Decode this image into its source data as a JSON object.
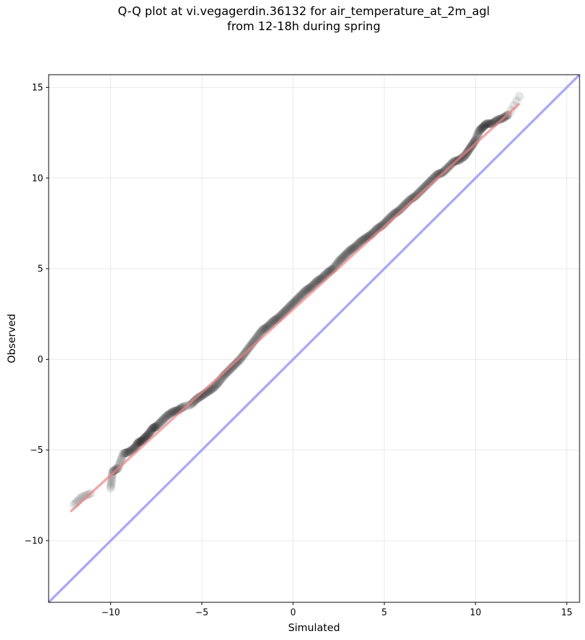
{
  "title": {
    "line1": "Q-Q plot at vi.vegagerdin.36132 for air_temperature_at_2m_agl",
    "line2": "from 12-18h during spring"
  },
  "chart_data": {
    "type": "scatter",
    "title": "Q-Q plot at vi.vegagerdin.36132 for air_temperature_at_2m_agl from 12-18h during spring",
    "xlabel": "Simulated",
    "ylabel": "Observed",
    "xlim": [
      -13.4,
      15.7
    ],
    "ylim": [
      -13.4,
      15.7
    ],
    "xticks": [
      -10,
      -5,
      0,
      5,
      10,
      15
    ],
    "xtick_labels": [
      "−10",
      "−5",
      "0",
      "5",
      "10",
      "15"
    ],
    "yticks": [
      -10,
      -5,
      0,
      5,
      10,
      15
    ],
    "ytick_labels": [
      "−10",
      "−5",
      "0",
      "5",
      "10",
      "15"
    ],
    "grid": true,
    "series": [
      {
        "kind": "quantile-points",
        "color": "#000000",
        "opacity": 0.1,
        "x": [
          -12.0,
          -11.6,
          -11.1,
          -10.0,
          -9.9,
          -9.6,
          -9.3,
          -9.0,
          -8.7,
          -8.5,
          -8.3,
          -8.1,
          -7.9,
          -7.7,
          -7.5,
          -7.2,
          -6.9,
          -6.6,
          -6.3,
          -6.0,
          -5.6,
          -5.3,
          -5.0,
          -4.7,
          -4.4,
          -4.1,
          -3.8,
          -3.5,
          -3.2,
          -2.9,
          -2.6,
          -2.3,
          -2.0,
          -1.7,
          -1.4,
          -1.1,
          -0.8,
          -0.5,
          -0.2,
          0.1,
          0.4,
          0.7,
          1.0,
          1.3,
          1.6,
          1.9,
          2.2,
          2.5,
          2.8,
          3.1,
          3.4,
          3.7,
          4.0,
          4.3,
          4.6,
          4.9,
          5.2,
          5.5,
          5.8,
          6.1,
          6.4,
          6.7,
          7.0,
          7.3,
          7.6,
          7.9,
          8.2,
          8.5,
          8.8,
          9.1,
          9.4,
          9.6,
          9.8,
          10.0,
          10.2,
          10.4,
          10.6,
          10.9,
          11.2,
          11.5,
          11.8,
          12.4
        ],
        "y": [
          -8.0,
          -7.6,
          -7.4,
          -7.1,
          -6.2,
          -6.0,
          -5.2,
          -5.1,
          -4.9,
          -4.6,
          -4.5,
          -4.3,
          -4.1,
          -3.8,
          -3.7,
          -3.4,
          -3.1,
          -2.9,
          -2.8,
          -2.6,
          -2.5,
          -2.2,
          -2.0,
          -1.8,
          -1.6,
          -1.3,
          -0.9,
          -0.6,
          -0.3,
          0.0,
          0.4,
          0.8,
          1.2,
          1.6,
          1.8,
          2.1,
          2.3,
          2.6,
          2.9,
          3.2,
          3.5,
          3.8,
          4.0,
          4.3,
          4.5,
          4.8,
          5.0,
          5.4,
          5.7,
          6.0,
          6.2,
          6.5,
          6.7,
          6.9,
          7.2,
          7.4,
          7.7,
          8.0,
          8.2,
          8.5,
          8.8,
          9.0,
          9.3,
          9.6,
          9.9,
          10.2,
          10.3,
          10.6,
          10.9,
          11.0,
          11.2,
          11.5,
          11.8,
          12.1,
          12.6,
          12.8,
          13.0,
          13.0,
          13.2,
          13.3,
          13.5,
          14.5
        ]
      },
      {
        "kind": "fit-line",
        "color": "#f08080",
        "x": [
          -12.2,
          12.4
        ],
        "y": [
          -8.4,
          14.1
        ]
      },
      {
        "kind": "identity-line",
        "color": "#9999ff",
        "x": [
          -13.4,
          15.7
        ],
        "y": [
          -13.4,
          15.7
        ]
      }
    ]
  }
}
